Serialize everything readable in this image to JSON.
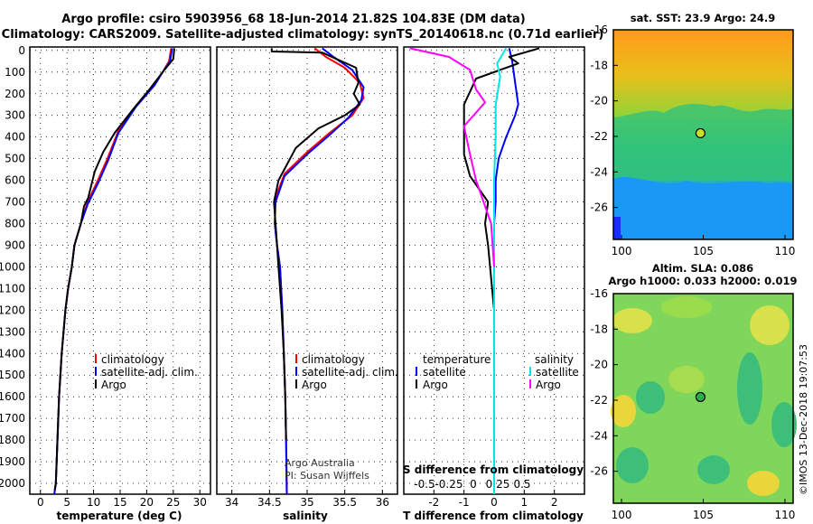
{
  "header": {
    "line1": "Argo profile: csiro 5903956_68 18-Jun-2014 21.82S 104.83E (DM data)",
    "line2": "Climatology: CARS2009. Satellite-adjusted climatology: synTS_20140618.nc (0.71d earlier)"
  },
  "colors": {
    "climatology": "#ff0000",
    "satellite": "#0000ff",
    "argo": "#000000",
    "satellite_salinity": "#00e5e5",
    "argo_salinity": "#ff00ff"
  },
  "chart_data": [
    {
      "type": "line",
      "panel": "temperature",
      "xlabel": "temperature (deg C)",
      "xlim": [
        -2,
        32
      ],
      "ylim": [
        2050,
        -16
      ],
      "yticks": [
        0,
        100,
        200,
        300,
        400,
        500,
        600,
        700,
        800,
        900,
        1000,
        1100,
        1200,
        1300,
        1400,
        1500,
        1600,
        1700,
        1800,
        1900,
        2000
      ],
      "xticks": [
        0,
        5,
        10,
        15,
        20,
        25,
        30
      ],
      "xtick_labels": [
        "0",
        "5",
        "10",
        "15",
        "20",
        "25",
        "30"
      ],
      "legend": [
        "climatology",
        "satellite-adj. clim.",
        "Argo"
      ],
      "legend_position": "lower-left",
      "series": [
        {
          "name": "climatology",
          "color": "#ff0000",
          "x": [
            24.6,
            24.2,
            23.0,
            21.3,
            18.2,
            14.7,
            12.6,
            10.8,
            8.9,
            7.6,
            6.4,
            5.9,
            5.2,
            4.7,
            4.0,
            3.5,
            3.2,
            2.9,
            2.6
          ],
          "y": [
            -10,
            50,
            100,
            160,
            250,
            370,
            500,
            600,
            700,
            800,
            900,
            1000,
            1100,
            1200,
            1400,
            1600,
            1800,
            2000,
            2050
          ]
        },
        {
          "name": "satellite-adj. clim.",
          "color": "#0000ff",
          "x": [
            24.8,
            24.4,
            23.0,
            21.5,
            18.0,
            14.7,
            12.7,
            10.9,
            8.9,
            7.6,
            6.4,
            5.9,
            5.2,
            4.7,
            4.0,
            3.5,
            3.2,
            2.9,
            2.6
          ],
          "y": [
            -10,
            50,
            100,
            160,
            260,
            380,
            510,
            610,
            710,
            800,
            900,
            1000,
            1100,
            1200,
            1400,
            1600,
            1800,
            2000,
            2050
          ]
        },
        {
          "name": "Argo",
          "color": "#000000",
          "x": [
            25.2,
            25.0,
            23.0,
            20.5,
            17.5,
            14.0,
            11.8,
            10.2,
            9.0,
            8.2,
            7.6,
            6.4,
            5.9,
            5.2,
            4.7,
            4.0,
            3.5,
            3.2,
            2.9,
            2.7
          ],
          "y": [
            -10,
            40,
            100,
            180,
            270,
            380,
            470,
            560,
            680,
            720,
            800,
            900,
            1000,
            1100,
            1200,
            1400,
            1600,
            1800,
            2000,
            2030
          ]
        }
      ]
    },
    {
      "type": "line",
      "panel": "salinity",
      "xlabel": "salinity",
      "xlim": [
        33.8,
        36.2
      ],
      "ylim": [
        2050,
        -16
      ],
      "xticks": [
        34,
        34.5,
        35,
        35.5,
        36
      ],
      "xtick_labels": [
        "34",
        "34.5",
        "35",
        "35.5",
        "36"
      ],
      "legend": [
        "climatology",
        "satellite-adj. clim.",
        "Argo"
      ],
      "legend_position": "lower-left",
      "annotation": [
        "Argo Australia",
        "PI: Susan Wijffels"
      ],
      "series": [
        {
          "name": "climatology",
          "color": "#ff0000",
          "x": [
            35.1,
            35.25,
            35.5,
            35.7,
            35.75,
            35.6,
            35.3,
            35.0,
            34.7,
            34.58,
            34.57,
            34.6,
            34.64,
            34.67,
            34.69,
            34.71,
            34.72,
            34.73
          ],
          "y": [
            -10,
            30,
            80,
            150,
            220,
            300,
            380,
            470,
            570,
            680,
            800,
            900,
            1000,
            1200,
            1400,
            1600,
            1800,
            2050
          ]
        },
        {
          "name": "satellite-adj. clim.",
          "color": "#0000ff",
          "x": [
            35.2,
            35.35,
            35.6,
            35.75,
            35.72,
            35.55,
            35.3,
            35.0,
            34.7,
            34.58,
            34.57,
            34.6,
            34.64,
            34.67,
            34.69,
            34.71,
            34.72,
            34.73
          ],
          "y": [
            -10,
            30,
            90,
            170,
            230,
            310,
            390,
            480,
            580,
            700,
            800,
            900,
            1000,
            1200,
            1400,
            1600,
            1800,
            2050
          ]
        },
        {
          "name": "Argo",
          "color": "#000000",
          "x": [
            34.53,
            34.53,
            35.2,
            35.65,
            35.68,
            35.62,
            35.7,
            35.5,
            35.15,
            34.85,
            34.62,
            34.56,
            34.58,
            34.6,
            34.62,
            34.66,
            34.69,
            34.71,
            34.72
          ],
          "y": [
            -10,
            5,
            10,
            80,
            150,
            200,
            250,
            300,
            360,
            450,
            600,
            700,
            800,
            900,
            1000,
            1200,
            1400,
            1600,
            1800
          ]
        }
      ]
    },
    {
      "type": "line",
      "panel": "difference from climatology",
      "xlabel": "T difference from climatology",
      "top_xlabel": "S difference from climatology",
      "xlim": [
        -3,
        3
      ],
      "ylim": [
        2050,
        -16
      ],
      "xticks": [
        -2,
        -1,
        0,
        1,
        2
      ],
      "xtick_labels": [
        "-2",
        "-1",
        "0",
        "1",
        "2"
      ],
      "s_ticks": [
        -0.5,
        -0.25,
        0,
        0.25,
        0.5
      ],
      "s_tick_labels": [
        "-0.5",
        "-0.25",
        "0",
        "0.25",
        "0.5"
      ],
      "legend_left_title": "temperature",
      "legend_right_title": "salinity",
      "legend_left": [
        "satellite",
        "Argo"
      ],
      "legend_right": [
        "satellite",
        "Argo"
      ],
      "legend_position": "lower",
      "series": [
        {
          "name": "T satellite",
          "color": "#0000ff",
          "x": [
            0.5,
            0.6,
            0.7,
            0.8,
            0.7,
            0.4,
            0.15,
            0.05,
            0.05,
            0.0,
            0.0,
            0.0
          ],
          "y": [
            -10,
            50,
            150,
            250,
            300,
            400,
            500,
            600,
            700,
            800,
            1200,
            2050
          ]
        },
        {
          "name": "T Argo",
          "color": "#000000",
          "x": [
            1.5,
            0.5,
            0.8,
            -0.6,
            -1.0,
            -1.0,
            -1.0,
            -0.8,
            -0.2,
            -0.3,
            -0.2,
            0.0,
            0.0
          ],
          "y": [
            -10,
            30,
            60,
            130,
            250,
            380,
            480,
            580,
            700,
            800,
            900,
            1200,
            2050
          ]
        },
        {
          "name": "S satellite",
          "color": "#00e5e5",
          "x": [
            0.4,
            0.1,
            0.2,
            0.05,
            0.05,
            0.0,
            0.0,
            0.0
          ],
          "y": [
            -10,
            60,
            120,
            250,
            400,
            600,
            1200,
            2050
          ]
        },
        {
          "name": "S Argo",
          "color": "#ff00ff",
          "x": [
            -2.8,
            -1.5,
            -0.8,
            -0.6,
            -0.3,
            -1.0,
            -0.8,
            -0.6,
            -0.1,
            0.0
          ],
          "y": [
            -10,
            30,
            90,
            180,
            240,
            350,
            480,
            600,
            800,
            1000
          ]
        }
      ]
    },
    {
      "type": "heatmap",
      "panel": "satellite SST map",
      "title": "sat. SST: 23.9  Argo: 24.9",
      "xticks": [
        100,
        105,
        110
      ],
      "xtick_labels": [
        "100",
        "105",
        "110"
      ],
      "yticks": [
        -16,
        -18,
        -20,
        -22,
        -24,
        -26
      ],
      "ytick_labels": [
        "-16",
        "-18",
        "-20",
        "-22",
        "-24",
        "-26"
      ],
      "xlim": [
        99.5,
        110.5
      ],
      "ylim": [
        -27.8,
        -16
      ],
      "marker": {
        "lon": 104.83,
        "lat": -21.82
      }
    },
    {
      "type": "heatmap",
      "panel": "altimetry SLA map",
      "title_lines": [
        "Altim. SLA: 0.086",
        "Argo h1000: 0.033 h2000: 0.019"
      ],
      "xticks": [
        100,
        105,
        110
      ],
      "xtick_labels": [
        "100",
        "105",
        "110"
      ],
      "yticks": [
        -16,
        -18,
        -20,
        -22,
        -24,
        -26
      ],
      "ytick_labels": [
        "-16",
        "-18",
        "-20",
        "-22",
        "-24",
        "-26"
      ],
      "xlim": [
        99.5,
        110.5
      ],
      "ylim": [
        -27.8,
        -16
      ],
      "marker": {
        "lon": 104.83,
        "lat": -21.82
      }
    }
  ],
  "credit": "©IMOS 13-Dec-2018 19:07:53"
}
